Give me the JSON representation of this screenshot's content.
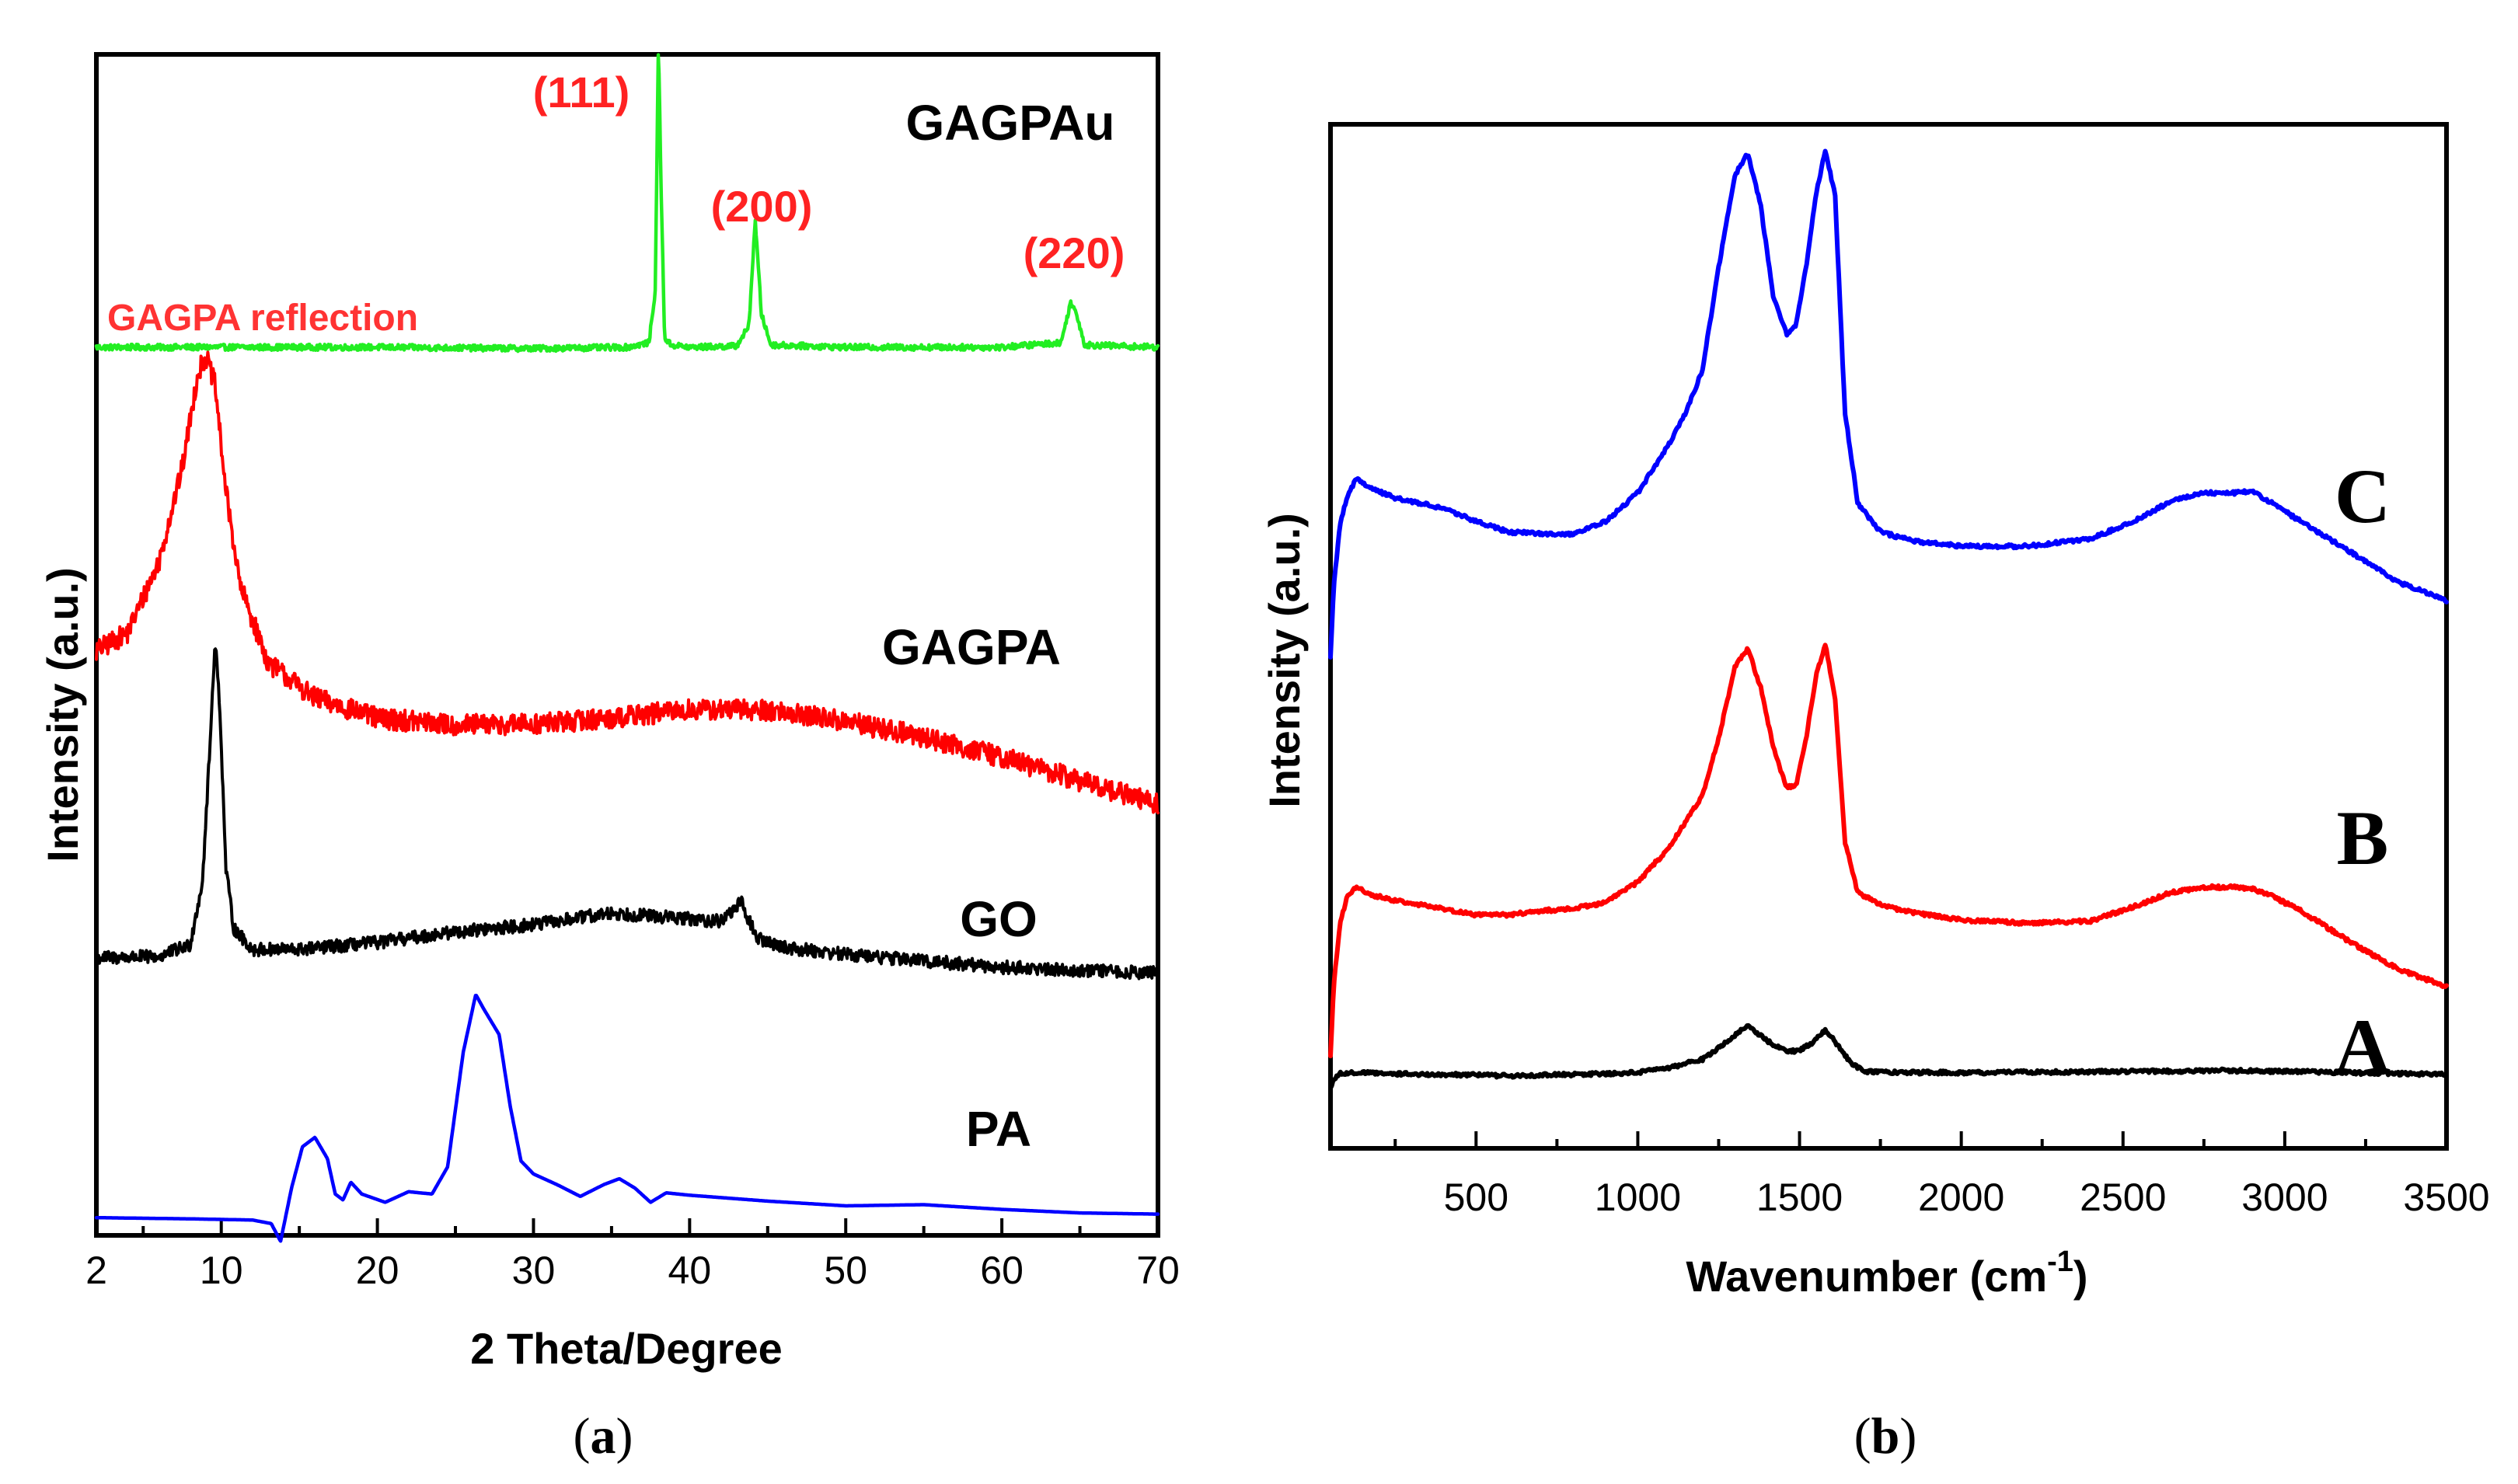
{
  "chart_data": [
    {
      "panel": "(a)",
      "type": "line",
      "title": "",
      "xlabel": "2 Theta/Degree",
      "ylabel": "Intensity (a.u.)",
      "xlim": [
        2,
        70
      ],
      "ylim": [
        0,
        100
      ],
      "xticks": [
        2,
        10,
        20,
        30,
        40,
        50,
        60,
        70
      ],
      "x_tick_labels": [
        "2",
        "10",
        "20",
        "30",
        "40",
        "50",
        "60",
        "70"
      ],
      "y_ticks_shown": false,
      "series": [
        {
          "name": "GAGPAu",
          "label": "GAGPAu",
          "color": "#22ee22",
          "noise": 0.25,
          "x": [
            2,
            20,
            30,
            36,
            37.4,
            37.8,
            38.0,
            38.2,
            38.4,
            38.8,
            40,
            43,
            43.8,
            44.2,
            44.6,
            45.2,
            50,
            60,
            63.8,
            64.4,
            64.8,
            65.3,
            70
          ],
          "y": [
            75.2,
            75.2,
            75.1,
            75.2,
            75.6,
            80,
            101,
            87,
            76,
            75.4,
            75.2,
            75.3,
            77,
            86,
            78,
            75.4,
            75.2,
            75.2,
            75.6,
            79,
            78,
            75.4,
            75.2
          ]
        },
        {
          "name": "GAGPA",
          "label": "GAGPA",
          "color": "#ff0000",
          "noise": 0.9,
          "x": [
            2,
            4,
            6,
            7.5,
            8.5,
            9.0,
            9.6,
            10.3,
            11.2,
            13,
            16,
            20,
            25,
            30,
            35,
            40,
            45,
            50,
            55,
            60,
            65,
            70
          ],
          "y": [
            49.5,
            51,
            57,
            65,
            73,
            74.5,
            72,
            63,
            55,
            48.5,
            45.5,
            43.8,
            43.2,
            43.3,
            43.8,
            44.5,
            44.5,
            43.5,
            42.2,
            40.5,
            38.5,
            36.5
          ]
        },
        {
          "name": "GO",
          "label": "GO",
          "color": "#000000",
          "noise": 0.55,
          "x": [
            2,
            6,
            8,
            8.8,
            9.3,
            9.6,
            9.9,
            10.3,
            10.8,
            12,
            15,
            20,
            25,
            30,
            35,
            40,
            42,
            43.3,
            44.3,
            46,
            50,
            60,
            70
          ],
          "y": [
            23.5,
            23.6,
            24.6,
            30,
            42,
            50.5,
            45,
            31,
            26,
            24.2,
            24.2,
            24.8,
            25.7,
            26.3,
            27.3,
            26.8,
            26.6,
            28.2,
            25.2,
            24.4,
            23.8,
            22.7,
            22.2
          ]
        },
        {
          "name": "PA",
          "label": "PA",
          "color": "#0000ff",
          "noise": 0,
          "x": [
            2,
            8,
            12,
            13.2,
            13.8,
            14.5,
            15.2,
            16.0,
            16.8,
            17.3,
            17.8,
            18.3,
            19,
            20.5,
            22,
            23.5,
            24.5,
            25.5,
            26.3,
            26.8,
            27.8,
            28.5,
            29.2,
            30,
            31.5,
            33,
            34.5,
            35.5,
            36.5,
            37.5,
            38.5,
            40,
            45,
            50,
            55,
            60,
            65,
            70
          ],
          "y": [
            1.5,
            1.4,
            1.3,
            1.0,
            -0.5,
            4,
            7.5,
            8.3,
            6.5,
            3.5,
            3.0,
            4.5,
            3.5,
            2.8,
            3.7,
            3.5,
            5.8,
            15.5,
            20.4,
            19.2,
            17,
            11,
            6.3,
            5.2,
            4.3,
            3.3,
            4.3,
            4.8,
            4.0,
            2.8,
            3.6,
            3.4,
            2.9,
            2.5,
            2.6,
            2.2,
            1.9,
            1.8
          ]
        }
      ],
      "annotations": [
        {
          "text": "(111)",
          "x": 38.2,
          "color": "#ff2222"
        },
        {
          "text": "(200)",
          "x": 44.2,
          "color": "#ff2222"
        },
        {
          "text": "(220)",
          "x": 64.4,
          "color": "#ff2222"
        },
        {
          "text": "GAGPA reflection",
          "x": 2.5,
          "color": "#ff3333"
        }
      ]
    },
    {
      "panel": "(b)",
      "type": "line",
      "title": "",
      "xlabel": "Wavenumber (cm",
      "xlabel_superscript": "-1",
      "xlabel_suffix": ")",
      "ylabel": "Intensity (a.u.)",
      "xlim": [
        50,
        3500
      ],
      "ylim": [
        0,
        100
      ],
      "xticks": [
        500,
        1000,
        1500,
        2000,
        2500,
        3000,
        3500
      ],
      "x_tick_labels": [
        "500",
        "1000",
        "1500",
        "2000",
        "2500",
        "3000",
        "3500"
      ],
      "minor_xticks": [
        250,
        750,
        1250,
        1750,
        2250,
        2750,
        3250
      ],
      "y_ticks_shown": false,
      "series": [
        {
          "name": "C",
          "label": "C",
          "color": "#0000ff",
          "x": [
            50,
            60,
            80,
            100,
            130,
            170,
            250,
            400,
            500,
            600,
            700,
            800,
            900,
            1000,
            1100,
            1150,
            1200,
            1250,
            1300,
            1340,
            1380,
            1420,
            1460,
            1490,
            1520,
            1550,
            1580,
            1610,
            1640,
            1680,
            1750,
            1850,
            2000,
            2200,
            2400,
            2550,
            2650,
            2750,
            2850,
            2900,
            2950,
            3050,
            3200,
            3350,
            3500
          ],
          "y": [
            48,
            55,
            61,
            63.5,
            65.5,
            64.5,
            63.5,
            62.5,
            61.2,
            60.2,
            60.0,
            60.0,
            61.2,
            64,
            69,
            72,
            76,
            86,
            95,
            97.2,
            92,
            83,
            79.5,
            80.5,
            86,
            93,
            97.5,
            93,
            72,
            63,
            60.2,
            59.3,
            58.8,
            58.8,
            59.5,
            61.5,
            63.2,
            64.0,
            64.0,
            64.2,
            63.2,
            61.2,
            58.3,
            55.3,
            53.5
          ]
        },
        {
          "name": "B",
          "label": "B",
          "color": "#ff0000",
          "x": [
            50,
            60,
            80,
            100,
            130,
            170,
            250,
            400,
            500,
            600,
            700,
            800,
            900,
            1000,
            1100,
            1200,
            1250,
            1300,
            1340,
            1380,
            1420,
            1460,
            1490,
            1520,
            1550,
            1580,
            1610,
            1640,
            1680,
            1750,
            1850,
            2000,
            2200,
            2400,
            2550,
            2650,
            2750,
            2850,
            2900,
            2950,
            3050,
            3200,
            3350,
            3500
          ],
          "y": [
            9,
            16,
            22,
            24.5,
            25.5,
            24.8,
            24.2,
            23.4,
            22.8,
            22.8,
            23.2,
            23.4,
            24.0,
            26.0,
            29.5,
            34.5,
            40,
            47,
            48.8,
            45,
            39,
            35.2,
            35.5,
            40,
            46,
            49.2,
            44,
            30,
            25,
            23.8,
            23.0,
            22.3,
            22.0,
            22.2,
            23.8,
            25.0,
            25.5,
            25.5,
            25.3,
            24.8,
            23.2,
            20.2,
            17.5,
            15.8
          ]
        },
        {
          "name": "A",
          "label": "A",
          "color": "#000000",
          "x": [
            50,
            60,
            80,
            120,
            200,
            400,
            600,
            800,
            1000,
            1100,
            1200,
            1280,
            1340,
            1400,
            1460,
            1500,
            1540,
            1580,
            1620,
            1660,
            1700,
            1800,
            2000,
            2500,
            2800,
            3000,
            3200,
            3500
          ],
          "y": [
            5.8,
            6.8,
            7.3,
            7.4,
            7.3,
            7.2,
            7.1,
            7.2,
            7.4,
            7.9,
            8.7,
            10.5,
            12.0,
            10.5,
            9.4,
            9.6,
            10.3,
            11.6,
            10.0,
            8.3,
            7.5,
            7.4,
            7.4,
            7.5,
            7.6,
            7.5,
            7.4,
            7.2
          ]
        }
      ]
    }
  ],
  "captions": {
    "a": "(a)",
    "b": "(b)"
  },
  "caption_parts": {
    "a": {
      "open": "(",
      "letter": "a",
      "close": ")"
    },
    "b": {
      "open": "(",
      "letter": "b",
      "close": ")"
    }
  }
}
